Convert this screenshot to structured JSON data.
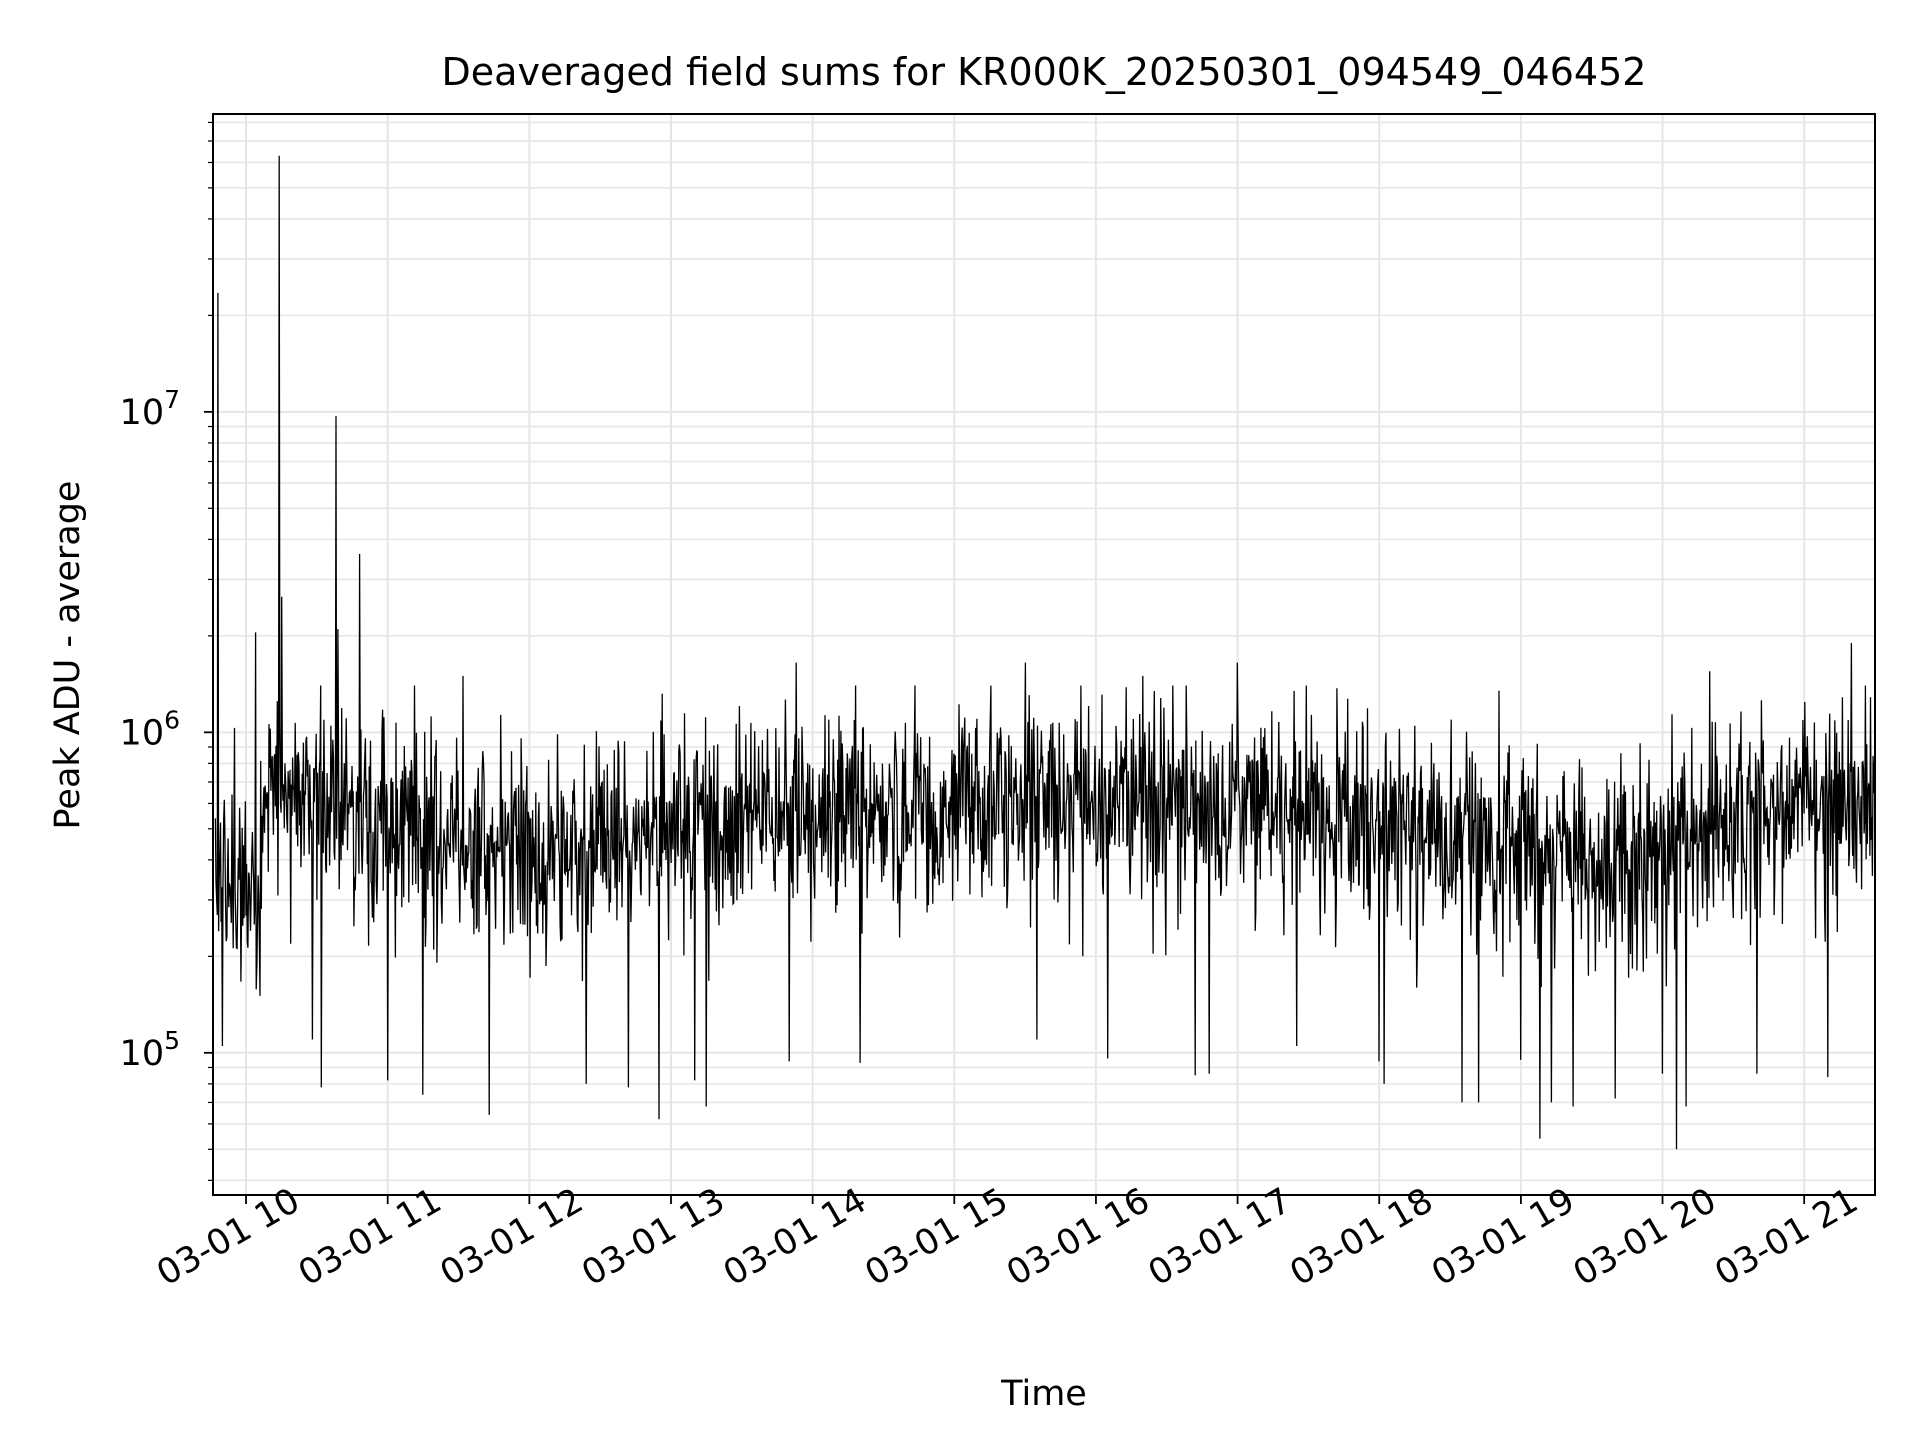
{
  "chart_data": {
    "type": "line",
    "title": "Deaveraged field sums for KR000K_20250301_094549_046452",
    "xlabel": "Time",
    "ylabel": "Peak ADU - average",
    "y_scale": "log",
    "grid": true,
    "grid_minor": true,
    "line_color": "#000000",
    "grid_color": "#e6e6e6",
    "x_ticks": [
      "03-01 10",
      "03-01 11",
      "03-01 12",
      "03-01 13",
      "03-01 14",
      "03-01 15",
      "03-01 16",
      "03-01 17",
      "03-01 18",
      "03-01 19",
      "03-01 20",
      "03-01 21"
    ],
    "x_range": [
      "2025-03-01 09:46",
      "2025-03-01 21:30"
    ],
    "y_ticks": [
      {
        "base": "10",
        "exp": "5",
        "value": 100000
      },
      {
        "base": "10",
        "exp": "6",
        "value": 1000000
      },
      {
        "base": "10",
        "exp": "7",
        "value": 10000000
      }
    ],
    "ylim": [
      36000,
      85000000
    ],
    "series": [
      {
        "style": "noisy",
        "baseline": [
          [
            "2025-03-01 09:47",
            350000
          ],
          [
            "2025-03-01 10:05",
            300000
          ],
          [
            "2025-03-01 10:08",
            650000
          ],
          [
            "2025-03-01 11:00",
            500000
          ],
          [
            "2025-03-01 12:00",
            440000
          ],
          [
            "2025-03-01 13:00",
            510000
          ],
          [
            "2025-03-01 14:00",
            560000
          ],
          [
            "2025-03-01 15:00",
            590000
          ],
          [
            "2025-03-01 16:00",
            600000
          ],
          [
            "2025-03-01 17:00",
            580000
          ],
          [
            "2025-03-01 17:50",
            560000
          ],
          [
            "2025-03-01 18:30",
            450000
          ],
          [
            "2025-03-01 19:30",
            410000
          ],
          [
            "2025-03-01 20:30",
            520000
          ],
          [
            "2025-03-01 21:30",
            620000
          ]
        ],
        "spikes": [
          [
            "2025-03-01 09:48",
            23500000
          ],
          [
            "2025-03-01 09:50",
            1300000
          ],
          [
            "2025-03-01 10:04",
            2050000
          ],
          [
            "2025-03-01 10:14",
            63000000
          ],
          [
            "2025-03-01 10:15",
            2650000
          ],
          [
            "2025-03-01 10:38",
            9700000
          ],
          [
            "2025-03-01 10:39",
            2100000
          ],
          [
            "2025-03-01 10:48",
            3600000
          ],
          [
            "2025-03-01 11:32",
            1500000
          ],
          [
            "2025-03-01 13:53",
            1650000
          ],
          [
            "2025-03-01 15:30",
            1650000
          ],
          [
            "2025-03-01 16:20",
            1500000
          ],
          [
            "2025-03-01 17:00",
            1650000
          ],
          [
            "2025-03-01 20:20",
            1550000
          ],
          [
            "2025-03-01 21:10",
            1850000
          ],
          [
            "2025-03-01 21:20",
            1900000
          ]
        ],
        "dips": [
          [
            "2025-03-01 09:50",
            105000
          ],
          [
            "2025-03-01 10:28",
            110000
          ],
          [
            "2025-03-01 10:32",
            78000
          ],
          [
            "2025-03-01 11:00",
            82000
          ],
          [
            "2025-03-01 11:15",
            74000
          ],
          [
            "2025-03-01 11:43",
            64000
          ],
          [
            "2025-03-01 12:24",
            80000
          ],
          [
            "2025-03-01 12:42",
            78000
          ],
          [
            "2025-03-01 12:55",
            62000
          ],
          [
            "2025-03-01 13:10",
            82000
          ],
          [
            "2025-03-01 13:15",
            68000
          ],
          [
            "2025-03-01 13:50",
            94000
          ],
          [
            "2025-03-01 14:20",
            93000
          ],
          [
            "2025-03-01 15:35",
            110000
          ],
          [
            "2025-03-01 16:05",
            96000
          ],
          [
            "2025-03-01 16:42",
            85000
          ],
          [
            "2025-03-01 16:48",
            86000
          ],
          [
            "2025-03-01 17:25",
            105000
          ],
          [
            "2025-03-01 18:00",
            94000
          ],
          [
            "2025-03-01 18:02",
            80000
          ],
          [
            "2025-03-01 18:35",
            70000
          ],
          [
            "2025-03-01 18:42",
            70000
          ],
          [
            "2025-03-01 19:00",
            95000
          ],
          [
            "2025-03-01 19:08",
            54000
          ],
          [
            "2025-03-01 19:13",
            70000
          ],
          [
            "2025-03-01 19:22",
            68000
          ],
          [
            "2025-03-01 19:40",
            72000
          ],
          [
            "2025-03-01 20:00",
            86000
          ],
          [
            "2025-03-01 20:06",
            50000
          ],
          [
            "2025-03-01 20:10",
            68000
          ],
          [
            "2025-03-01 20:40",
            86000
          ],
          [
            "2025-03-01 21:10",
            84000
          ]
        ]
      }
    ]
  }
}
